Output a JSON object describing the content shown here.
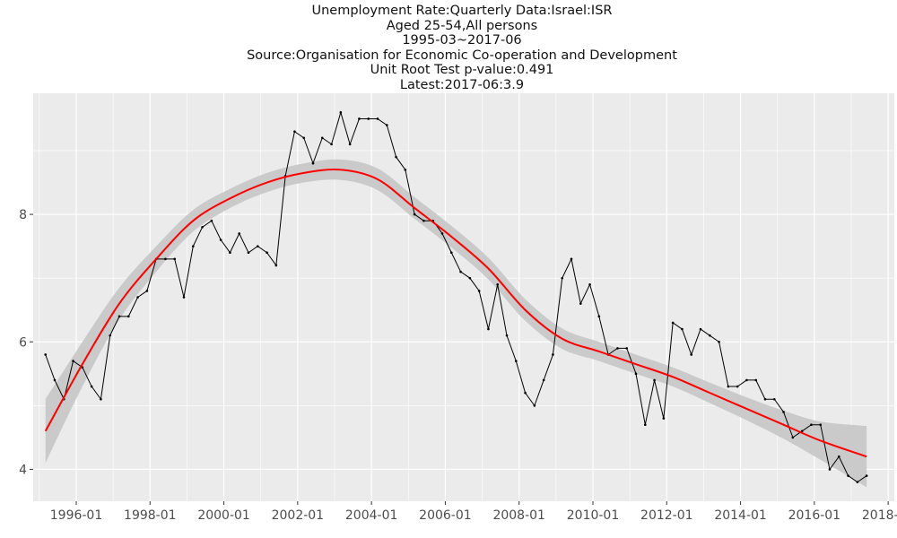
{
  "chart_data": {
    "type": "line",
    "title_lines": [
      "Unemployment Rate:Quarterly Data:Israel:ISR",
      "Aged 25-54,All persons",
      "1995-03~2017-06",
      "Source:Organisation for Economic Co-operation and Development",
      "Unit Root Test p-value:0.491",
      "Latest:2017-06:3.9"
    ],
    "xlabel": "",
    "ylabel": "",
    "x_ticks": [
      "1996-01",
      "1998-01",
      "2000-01",
      "2002-01",
      "2004-01",
      "2006-01",
      "2008-01",
      "2010-01",
      "2012-01",
      "2014-01",
      "2016-01",
      "2018-01"
    ],
    "y_ticks": [
      4,
      6,
      8
    ],
    "xlim": [
      "1994-11",
      "2018-03"
    ],
    "ylim": [
      3.5,
      9.9
    ],
    "grid": true,
    "legend": "none",
    "colors": {
      "series": "#000000",
      "trend": "#ff0000",
      "band": "#c8c8c8",
      "panel": "#ebebeb",
      "grid": "#ffffff"
    },
    "series": [
      {
        "values": [
          [
            "1995-03",
            5.8
          ],
          [
            "1995-06",
            5.4
          ],
          [
            "1995-09",
            5.1
          ],
          [
            "1995-12",
            5.7
          ],
          [
            "1996-03",
            5.6
          ],
          [
            "1996-06",
            5.3
          ],
          [
            "1996-09",
            5.1
          ],
          [
            "1996-12",
            6.1
          ],
          [
            "1997-03",
            6.4
          ],
          [
            "1997-06",
            6.4
          ],
          [
            "1997-09",
            6.7
          ],
          [
            "1997-12",
            6.8
          ],
          [
            "1998-03",
            7.3
          ],
          [
            "1998-06",
            7.3
          ],
          [
            "1998-09",
            7.3
          ],
          [
            "1998-12",
            6.7
          ],
          [
            "1999-03",
            7.5
          ],
          [
            "1999-06",
            7.8
          ],
          [
            "1999-09",
            7.9
          ],
          [
            "1999-12",
            7.6
          ],
          [
            "2000-03",
            7.4
          ],
          [
            "2000-06",
            7.7
          ],
          [
            "2000-09",
            7.4
          ],
          [
            "2000-12",
            7.5
          ],
          [
            "2001-03",
            7.4
          ],
          [
            "2001-06",
            7.2
          ],
          [
            "2001-09",
            8.6
          ],
          [
            "2001-12",
            9.3
          ],
          [
            "2002-03",
            9.2
          ],
          [
            "2002-06",
            8.8
          ],
          [
            "2002-09",
            9.2
          ],
          [
            "2002-12",
            9.1
          ],
          [
            "2003-03",
            9.6
          ],
          [
            "2003-06",
            9.1
          ],
          [
            "2003-09",
            9.5
          ],
          [
            "2003-12",
            9.5
          ],
          [
            "2004-03",
            9.5
          ],
          [
            "2004-06",
            9.4
          ],
          [
            "2004-09",
            8.9
          ],
          [
            "2004-12",
            8.7
          ],
          [
            "2005-03",
            8.0
          ],
          [
            "2005-06",
            7.9
          ],
          [
            "2005-09",
            7.9
          ],
          [
            "2005-12",
            7.7
          ],
          [
            "2006-03",
            7.4
          ],
          [
            "2006-06",
            7.1
          ],
          [
            "2006-09",
            7.0
          ],
          [
            "2006-12",
            6.8
          ],
          [
            "2007-03",
            6.2
          ],
          [
            "2007-06",
            6.9
          ],
          [
            "2007-09",
            6.1
          ],
          [
            "2007-12",
            5.7
          ],
          [
            "2008-03",
            5.2
          ],
          [
            "2008-06",
            5.0
          ],
          [
            "2008-09",
            5.4
          ],
          [
            "2008-12",
            5.8
          ],
          [
            "2009-03",
            7.0
          ],
          [
            "2009-06",
            7.3
          ],
          [
            "2009-09",
            6.6
          ],
          [
            "2009-12",
            6.9
          ],
          [
            "2010-03",
            6.4
          ],
          [
            "2010-06",
            5.8
          ],
          [
            "2010-09",
            5.9
          ],
          [
            "2010-12",
            5.9
          ],
          [
            "2011-03",
            5.5
          ],
          [
            "2011-06",
            4.7
          ],
          [
            "2011-09",
            5.4
          ],
          [
            "2011-12",
            4.8
          ],
          [
            "2012-03",
            6.3
          ],
          [
            "2012-06",
            6.2
          ],
          [
            "2012-09",
            5.8
          ],
          [
            "2012-12",
            6.2
          ],
          [
            "2013-03",
            6.1
          ],
          [
            "2013-06",
            6.0
          ],
          [
            "2013-09",
            5.3
          ],
          [
            "2013-12",
            5.3
          ],
          [
            "2014-03",
            5.4
          ],
          [
            "2014-06",
            5.4
          ],
          [
            "2014-09",
            5.1
          ],
          [
            "2014-12",
            5.1
          ],
          [
            "2015-03",
            4.9
          ],
          [
            "2015-06",
            4.5
          ],
          [
            "2015-09",
            4.6
          ],
          [
            "2015-12",
            4.7
          ],
          [
            "2016-03",
            4.7
          ],
          [
            "2016-06",
            4.0
          ],
          [
            "2016-09",
            4.2
          ],
          [
            "2016-12",
            3.9
          ],
          [
            "2017-03",
            3.8
          ],
          [
            "2017-06",
            3.9
          ]
        ]
      }
    ],
    "trend": {
      "values": [
        [
          "1995-03",
          4.6
        ],
        [
          "1996-03",
          5.65
        ],
        [
          "1997-03",
          6.6
        ],
        [
          "1998-03",
          7.3
        ],
        [
          "1999-03",
          7.9
        ],
        [
          "2000-03",
          8.25
        ],
        [
          "2001-03",
          8.5
        ],
        [
          "2002-03",
          8.65
        ],
        [
          "2003-03",
          8.7
        ],
        [
          "2004-03",
          8.55
        ],
        [
          "2005-03",
          8.1
        ],
        [
          "2006-03",
          7.65
        ],
        [
          "2007-03",
          7.15
        ],
        [
          "2008-03",
          6.5
        ],
        [
          "2009-03",
          6.05
        ],
        [
          "2010-03",
          5.85
        ],
        [
          "2011-03",
          5.65
        ],
        [
          "2012-03",
          5.45
        ],
        [
          "2013-03",
          5.2
        ],
        [
          "2014-03",
          4.95
        ],
        [
          "2015-03",
          4.7
        ],
        [
          "2016-03",
          4.45
        ],
        [
          "2017-06",
          4.2
        ]
      ],
      "band_halfwidth": [
        0.5,
        0.35,
        0.25,
        0.2,
        0.17,
        0.15,
        0.15,
        0.15,
        0.16,
        0.17,
        0.17,
        0.17,
        0.17,
        0.17,
        0.16,
        0.15,
        0.15,
        0.15,
        0.16,
        0.18,
        0.22,
        0.3,
        0.48
      ]
    }
  }
}
